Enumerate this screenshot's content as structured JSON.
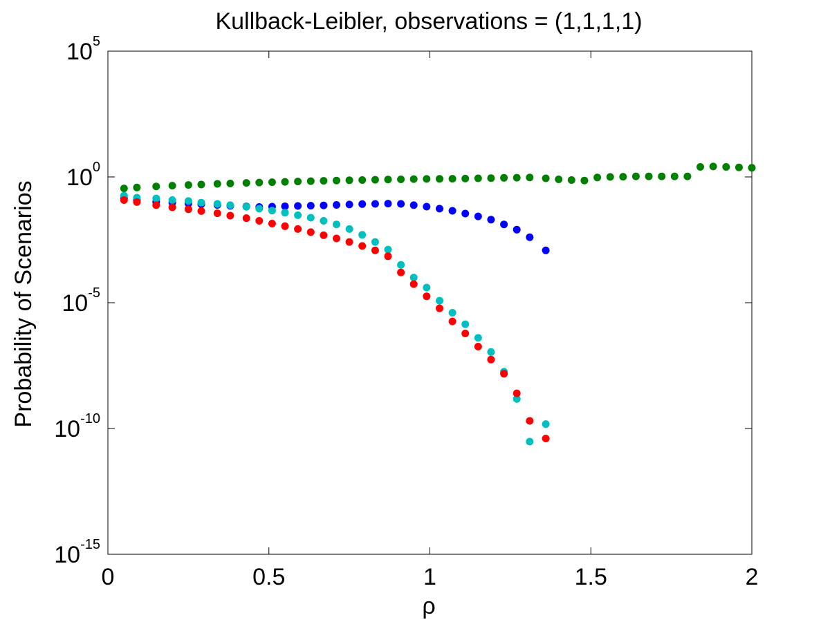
{
  "chart_data": {
    "type": "scatter",
    "title": "Kullback-Leibler, observations = (1,1,1,1)",
    "xlabel": "ρ",
    "ylabel": "Probability of Scenarios",
    "xlim": [
      0,
      2
    ],
    "ylim": [
      1e-15,
      100000.0
    ],
    "yscale": "log",
    "x_ticks": [
      {
        "value": 0,
        "label": "0"
      },
      {
        "value": 0.5,
        "label": "0.5"
      },
      {
        "value": 1,
        "label": "1"
      },
      {
        "value": 1.5,
        "label": "1.5"
      },
      {
        "value": 2,
        "label": "2"
      }
    ],
    "y_ticks": [
      {
        "value": 100000.0,
        "base": "10",
        "exponent": "5"
      },
      {
        "value": 1,
        "base": "10",
        "exponent": "0"
      },
      {
        "value": 1e-05,
        "base": "10",
        "exponent": "-5"
      },
      {
        "value": 1e-10,
        "base": "10",
        "exponent": "-10"
      },
      {
        "value": 1e-15,
        "base": "10",
        "exponent": "-15"
      }
    ],
    "grid": false,
    "series": [
      {
        "color": "#0000ff",
        "x": [
          0.05,
          0.09,
          0.15,
          0.2,
          0.25,
          0.29,
          0.34,
          0.38,
          0.43,
          0.47,
          0.51,
          0.55,
          0.59,
          0.63,
          0.67,
          0.71,
          0.75,
          0.79,
          0.83,
          0.87,
          0.91,
          0.95,
          0.99,
          1.03,
          1.07,
          1.11,
          1.15,
          1.19,
          1.23,
          1.27,
          1.31,
          1.36
        ],
        "y": [
          0.14,
          0.12,
          0.1,
          0.095,
          0.088,
          0.082,
          0.077,
          0.071,
          0.067,
          0.064,
          0.066,
          0.068,
          0.07,
          0.072,
          0.074,
          0.077,
          0.08,
          0.083,
          0.085,
          0.087,
          0.085,
          0.075,
          0.066,
          0.055,
          0.045,
          0.035,
          0.027,
          0.02,
          0.013,
          0.008,
          0.004,
          0.0012
        ]
      },
      {
        "color": "#008000",
        "x": [
          0.05,
          0.09,
          0.15,
          0.2,
          0.25,
          0.29,
          0.34,
          0.38,
          0.43,
          0.47,
          0.51,
          0.55,
          0.59,
          0.63,
          0.67,
          0.71,
          0.75,
          0.79,
          0.83,
          0.87,
          0.91,
          0.95,
          0.99,
          1.03,
          1.07,
          1.11,
          1.15,
          1.19,
          1.23,
          1.27,
          1.31,
          1.36,
          1.4,
          1.44,
          1.48,
          1.52,
          1.56,
          1.6,
          1.64,
          1.68,
          1.72,
          1.76,
          1.8,
          1.84,
          1.88,
          1.92,
          1.96,
          2.0
        ],
        "y": [
          0.35,
          0.38,
          0.42,
          0.45,
          0.48,
          0.5,
          0.53,
          0.55,
          0.58,
          0.6,
          0.62,
          0.64,
          0.66,
          0.68,
          0.7,
          0.72,
          0.74,
          0.75,
          0.77,
          0.79,
          0.8,
          0.82,
          0.83,
          0.84,
          0.85,
          0.86,
          0.88,
          0.9,
          0.92,
          0.93,
          0.95,
          0.88,
          0.8,
          0.75,
          0.72,
          0.95,
          1.0,
          1.02,
          1.05,
          1.05,
          1.05,
          1.05,
          1.05,
          2.5,
          2.6,
          2.5,
          2.4,
          2.3
        ]
      },
      {
        "color": "#00bfbf",
        "x": [
          0.05,
          0.09,
          0.15,
          0.2,
          0.25,
          0.29,
          0.34,
          0.38,
          0.43,
          0.47,
          0.51,
          0.55,
          0.59,
          0.63,
          0.67,
          0.71,
          0.75,
          0.79,
          0.83,
          0.87,
          0.91,
          0.95,
          0.99,
          1.03,
          1.07,
          1.11,
          1.15,
          1.19,
          1.23,
          1.27,
          1.31,
          1.36
        ],
        "y": [
          0.18,
          0.15,
          0.14,
          0.12,
          0.11,
          0.095,
          0.085,
          0.075,
          0.065,
          0.055,
          0.046,
          0.038,
          0.03,
          0.024,
          0.018,
          0.013,
          0.0085,
          0.005,
          0.0026,
          0.0013,
          0.00032,
          0.0001,
          4e-05,
          1.2e-05,
          4e-06,
          1.4e-06,
          4e-07,
          1.1e-07,
          1.8e-08,
          1.5e-09,
          3e-11,
          1.5e-10
        ]
      },
      {
        "color": "#ff0000",
        "x": [
          0.05,
          0.09,
          0.15,
          0.2,
          0.25,
          0.29,
          0.34,
          0.38,
          0.43,
          0.47,
          0.51,
          0.55,
          0.59,
          0.63,
          0.67,
          0.71,
          0.75,
          0.79,
          0.83,
          0.87,
          0.91,
          0.95,
          0.99,
          1.03,
          1.07,
          1.11,
          1.15,
          1.19,
          1.23,
          1.27,
          1.31,
          1.36
        ],
        "y": [
          0.12,
          0.1,
          0.075,
          0.062,
          0.052,
          0.044,
          0.036,
          0.029,
          0.023,
          0.018,
          0.014,
          0.011,
          0.0085,
          0.0064,
          0.0048,
          0.0036,
          0.0026,
          0.0018,
          0.0012,
          0.0007,
          0.00016,
          5.5e-05,
          1.8e-05,
          6e-06,
          1.8e-06,
          6e-07,
          1.8e-07,
          5.5e-08,
          1.5e-08,
          2.5e-09,
          2e-10,
          4e-11
        ]
      }
    ]
  }
}
